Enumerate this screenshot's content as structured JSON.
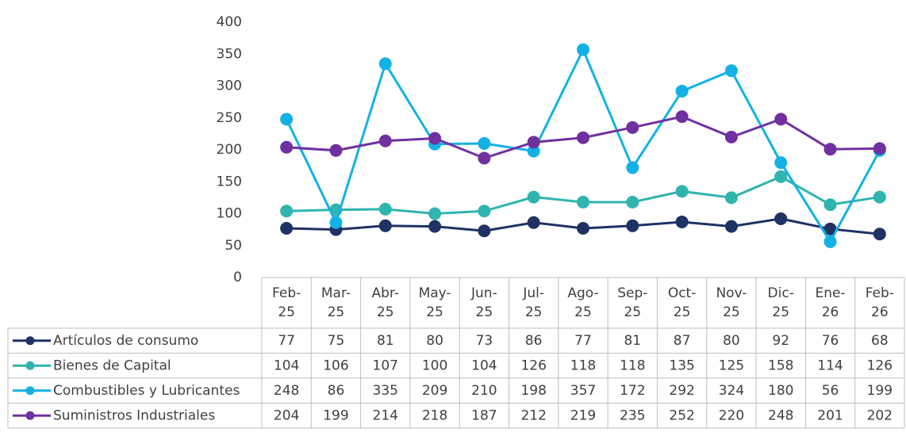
{
  "chart_data": {
    "type": "line",
    "categories": [
      "Feb-25",
      "Mar-25",
      "Abr-25",
      "May-25",
      "Jun-25",
      "Jul-25",
      "Ago-25",
      "Sep-25",
      "Oct-25",
      "Nov-25",
      "Dic-25",
      "Ene-26",
      "Feb-26"
    ],
    "series": [
      {
        "name": "Artículos de consumo",
        "color": "#1f3264",
        "values": [
          77,
          75,
          81,
          80,
          73,
          86,
          77,
          81,
          87,
          80,
          92,
          76,
          68
        ]
      },
      {
        "name": "Bienes de Capital",
        "color": "#2fb4ae",
        "values": [
          104,
          106,
          107,
          100,
          104,
          126,
          118,
          118,
          135,
          125,
          158,
          114,
          126
        ]
      },
      {
        "name": "Combustibles y Lubricantes",
        "color": "#13b1e6",
        "values": [
          248,
          86,
          335,
          209,
          210,
          198,
          357,
          172,
          292,
          324,
          180,
          56,
          199
        ]
      },
      {
        "name": "Suministros Industriales",
        "color": "#7030a0",
        "values": [
          204,
          199,
          214,
          218,
          187,
          212,
          219,
          235,
          252,
          220,
          248,
          201,
          202
        ]
      }
    ],
    "ylim": [
      0,
      400
    ],
    "yticks": [
      0,
      50,
      100,
      150,
      200,
      250,
      300,
      350,
      400
    ],
    "data_table": true
  }
}
